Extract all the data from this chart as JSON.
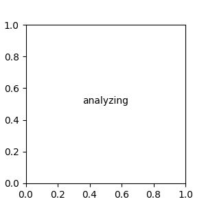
{
  "bg_color": "#ebebeb",
  "bond_color": "#2d2d2d",
  "atom_colors": {
    "S": "#cccc00",
    "N": "#0000ff",
    "O": "#ff0000",
    "NH": "#008080",
    "NH2": "#0000ff"
  },
  "font_size": 7.5,
  "bond_width": 1.4
}
